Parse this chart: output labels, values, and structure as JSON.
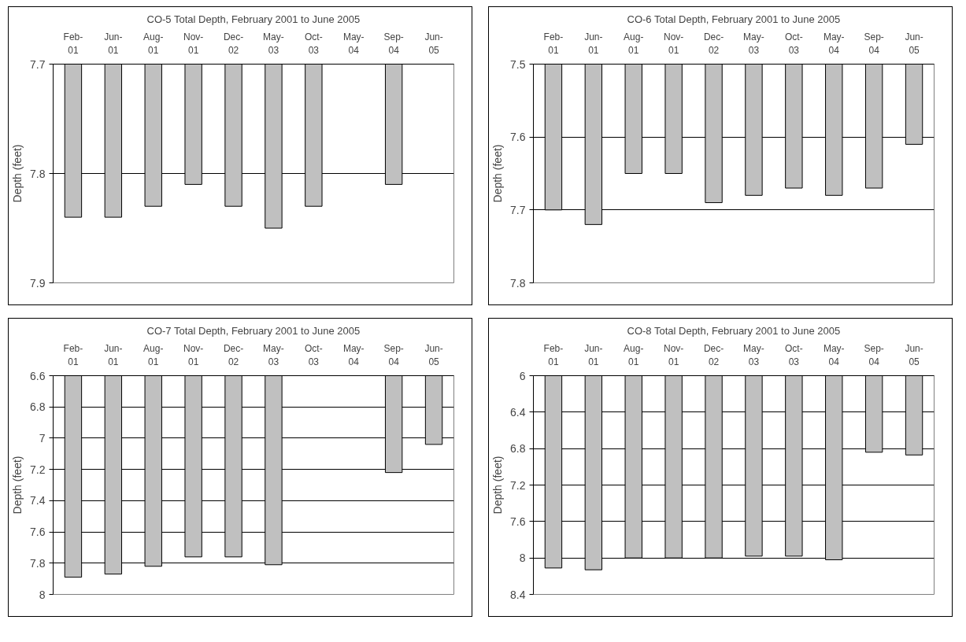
{
  "chart_data": [
    {
      "type": "bar",
      "title": "CO-5 Total Depth, February 2001 to June 2005",
      "ylabel": "Depth (feet)",
      "categories": [
        "Feb-01",
        "Jun-01",
        "Aug-01",
        "Nov-01",
        "Dec-02",
        "May-03",
        "Oct-03",
        "May-04",
        "Sep-04",
        "Jun-05"
      ],
      "values": [
        7.84,
        7.84,
        7.83,
        7.81,
        7.83,
        7.85,
        7.83,
        null,
        7.81,
        null
      ],
      "color": "#c0c0c0",
      "ylim": [
        7.9,
        7.7
      ],
      "yticks": [
        7.7,
        7.8,
        7.9
      ],
      "grid": "y",
      "legend": false
    },
    {
      "type": "bar",
      "title": "CO-6 Total Depth, February 2001 to June 2005",
      "ylabel": "Depth (feet)",
      "categories": [
        "Feb-01",
        "Jun-01",
        "Aug-01",
        "Nov-01",
        "Dec-02",
        "May-03",
        "Oct-03",
        "May-04",
        "Sep-04",
        "Jun-05"
      ],
      "values": [
        7.7,
        7.72,
        7.65,
        7.65,
        7.69,
        7.68,
        7.67,
        7.68,
        7.67,
        7.61
      ],
      "color": "#c0c0c0",
      "ylim": [
        7.8,
        7.5
      ],
      "yticks": [
        7.5,
        7.6,
        7.7,
        7.8
      ],
      "grid": "y",
      "legend": false
    },
    {
      "type": "bar",
      "title": "CO-7 Total Depth, February 2001 to June 2005",
      "ylabel": "Depth (feet)",
      "categories": [
        "Feb-01",
        "Jun-01",
        "Aug-01",
        "Nov-01",
        "Dec-02",
        "May-03",
        "Oct-03",
        "May-04",
        "Sep-04",
        "Jun-05"
      ],
      "values": [
        7.89,
        7.87,
        7.82,
        7.76,
        7.76,
        7.81,
        null,
        null,
        7.22,
        7.04
      ],
      "color": "#c0c0c0",
      "ylim": [
        8,
        6.6
      ],
      "yticks": [
        6.6,
        6.8,
        7,
        7.2,
        7.4,
        7.6,
        7.8,
        8
      ],
      "grid": "y",
      "legend": false
    },
    {
      "type": "bar",
      "title": "CO-8 Total Depth, February 2001 to June 2005",
      "ylabel": "Depth (feet)",
      "categories": [
        "Feb-01",
        "Jun-01",
        "Aug-01",
        "Nov-01",
        "Dec-02",
        "May-03",
        "Oct-03",
        "May-04",
        "Sep-04",
        "Jun-05"
      ],
      "values": [
        8.11,
        8.13,
        8.0,
        8.0,
        8.0,
        7.98,
        7.98,
        8.02,
        6.84,
        6.87
      ],
      "color": "#c0c0c0",
      "ylim": [
        8.4,
        6
      ],
      "yticks": [
        6,
        6.4,
        6.8,
        7.2,
        7.6,
        8,
        8.4
      ],
      "grid": "y",
      "legend": false
    }
  ]
}
